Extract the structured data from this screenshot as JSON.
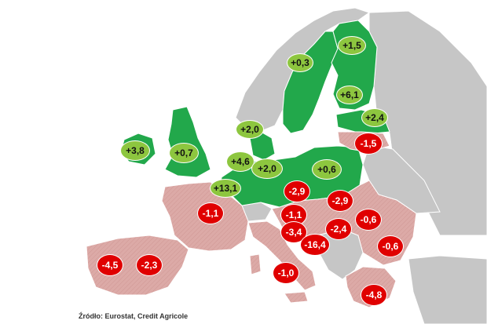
{
  "colors": {
    "positive_region": "#22a84b",
    "positive_badge": "#8dc63f",
    "negative_region": "#d8a5a2",
    "negative_badge": "#e00000",
    "other_region": "#c6c6c6",
    "border": "#ffffff"
  },
  "source": "Źródło: Eurostat, Credit Agricole",
  "labels": [
    {
      "id": "finland",
      "text": "+1,5",
      "sign": "pos"
    },
    {
      "id": "sweden",
      "text": "+0,3",
      "sign": "pos"
    },
    {
      "id": "estonia",
      "text": "+6,1",
      "sign": "pos"
    },
    {
      "id": "latvia",
      "text": "+2,4",
      "sign": "pos"
    },
    {
      "id": "denmark",
      "text": "+2,0",
      "sign": "pos"
    },
    {
      "id": "ireland",
      "text": "+3,8",
      "sign": "pos"
    },
    {
      "id": "uk",
      "text": "+0,7",
      "sign": "pos"
    },
    {
      "id": "netherlands",
      "text": "+4,6",
      "sign": "pos"
    },
    {
      "id": "germany",
      "text": "+2,0",
      "sign": "pos"
    },
    {
      "id": "poland",
      "text": "+0,6",
      "sign": "pos"
    },
    {
      "id": "belgium",
      "text": "+13,1",
      "sign": "pos"
    },
    {
      "id": "lithuania",
      "text": "-1,5",
      "sign": "neg"
    },
    {
      "id": "czechia",
      "text": "-2,9",
      "sign": "neg"
    },
    {
      "id": "slovakia",
      "text": "-2,9",
      "sign": "neg"
    },
    {
      "id": "france",
      "text": "-1,1",
      "sign": "neg"
    },
    {
      "id": "austria",
      "text": "-1,1",
      "sign": "neg"
    },
    {
      "id": "romania",
      "text": "-0,6",
      "sign": "neg"
    },
    {
      "id": "hungary",
      "text": "-2,4",
      "sign": "neg"
    },
    {
      "id": "slovenia",
      "text": "-3,4",
      "sign": "neg"
    },
    {
      "id": "croatia",
      "text": "-16,4",
      "sign": "neg"
    },
    {
      "id": "bulgaria",
      "text": "-0,6",
      "sign": "neg"
    },
    {
      "id": "portugal",
      "text": "-4,5",
      "sign": "neg"
    },
    {
      "id": "spain",
      "text": "-2,3",
      "sign": "neg"
    },
    {
      "id": "italy",
      "text": "-1,0",
      "sign": "neg"
    },
    {
      "id": "greece",
      "text": "-4,8",
      "sign": "neg"
    }
  ]
}
